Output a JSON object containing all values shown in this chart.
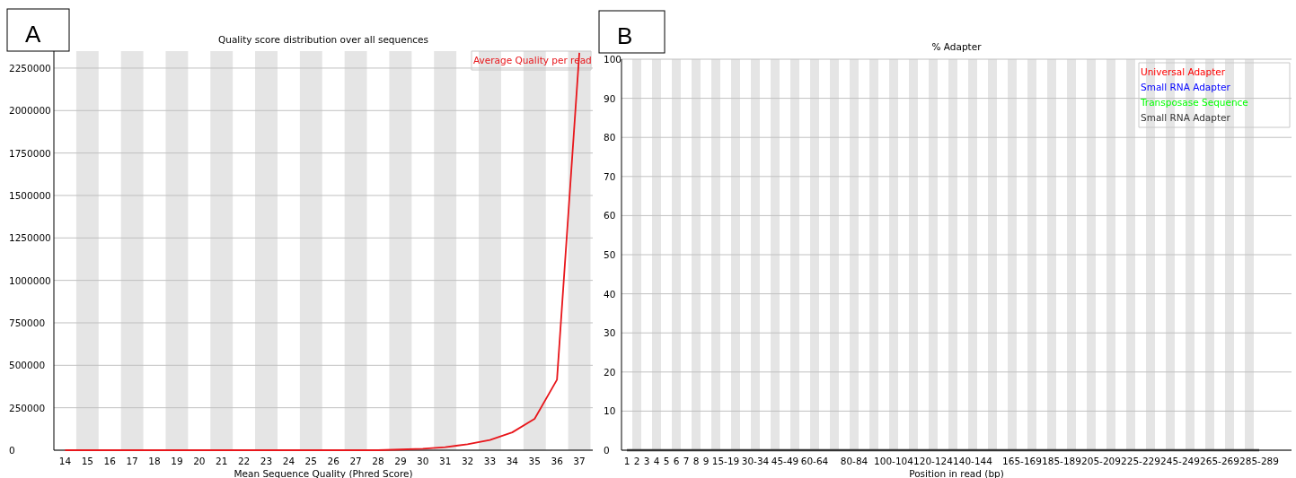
{
  "chart_data": [
    {
      "type": "line",
      "title": "Quality score distribution over all sequences",
      "xlabel": "Mean Sequence Quality (Phred Score)",
      "annotations": [
        "A"
      ],
      "x": [
        14,
        15,
        16,
        17,
        18,
        19,
        20,
        21,
        22,
        23,
        24,
        25,
        26,
        27,
        28,
        29,
        30,
        31,
        32,
        33,
        34,
        35,
        36,
        37
      ],
      "series": [
        {
          "name": "Average Quality per read",
          "color": "#e8161b",
          "values": [
            0,
            0,
            0,
            0,
            0,
            0,
            0,
            0,
            0,
            0,
            0,
            0,
            0,
            0,
            0,
            4000,
            9000,
            18000,
            35000,
            60000,
            105000,
            185000,
            415000,
            2340000
          ]
        }
      ],
      "xlim": [
        13.5,
        37.6
      ],
      "xticks": [
        14,
        15,
        16,
        17,
        18,
        19,
        20,
        21,
        22,
        23,
        24,
        25,
        26,
        27,
        28,
        29,
        30,
        31,
        32,
        33,
        34,
        35,
        36,
        37
      ],
      "ylim": [
        0,
        2350000
      ],
      "yticks": [
        0,
        250000,
        500000,
        750000,
        1000000,
        1250000,
        1500000,
        1750000,
        2000000,
        2250000
      ],
      "bands": [
        {
          "axis": "x",
          "from": 14.5,
          "to": 15.5,
          "color": "#e5e5e5"
        },
        {
          "axis": "x",
          "from": 16.5,
          "to": 17.5,
          "color": "#e5e5e5"
        },
        {
          "axis": "x",
          "from": 18.5,
          "to": 19.5,
          "color": "#e5e5e5"
        },
        {
          "axis": "x",
          "from": 20.5,
          "to": 21.5,
          "color": "#e5e5e5"
        },
        {
          "axis": "x",
          "from": 22.5,
          "to": 23.5,
          "color": "#e5e5e5"
        },
        {
          "axis": "x",
          "from": 24.5,
          "to": 25.5,
          "color": "#e5e5e5"
        },
        {
          "axis": "x",
          "from": 26.5,
          "to": 27.5,
          "color": "#e5e5e5"
        },
        {
          "axis": "x",
          "from": 28.5,
          "to": 29.5,
          "color": "#e5e5e5"
        },
        {
          "axis": "x",
          "from": 30.5,
          "to": 31.5,
          "color": "#e5e5e5"
        },
        {
          "axis": "x",
          "from": 32.5,
          "to": 33.5,
          "color": "#e5e5e5"
        },
        {
          "axis": "x",
          "from": 34.5,
          "to": 35.5,
          "color": "#e5e5e5"
        },
        {
          "axis": "x",
          "from": 36.5,
          "to": 37.5,
          "color": "#e5e5e5"
        }
      ],
      "grid": "y",
      "legend": "top right",
      "marker": "none",
      "line_style": "solid"
    },
    {
      "type": "line",
      "title": "% Adapter",
      "xlabel": "Position in read (bp)",
      "annotations": [
        "B"
      ],
      "categories": [
        "1",
        "2",
        "3",
        "4",
        "5",
        "6",
        "7",
        "8",
        "9",
        null,
        "15-19",
        null,
        null,
        "30-34",
        null,
        null,
        "45-49",
        null,
        null,
        "60-64",
        null,
        null,
        null,
        "80-84",
        null,
        null,
        null,
        "100-104",
        null,
        null,
        null,
        "120-124",
        null,
        null,
        null,
        "140-144",
        null,
        null,
        null,
        null,
        "165-169",
        null,
        null,
        null,
        "185-189",
        null,
        null,
        null,
        "205-209",
        null,
        null,
        null,
        "225-229",
        null,
        null,
        null,
        "245-249",
        null,
        null,
        null,
        "265-269",
        null,
        null,
        null,
        "285-289"
      ],
      "series": [
        {
          "name": "Universal Adapter",
          "color": "#ff0000",
          "values": [
            null,
            null,
            null,
            null,
            null,
            null,
            null,
            null,
            null,
            null,
            null,
            null,
            null,
            null,
            null,
            null,
            null,
            null,
            null,
            null,
            null,
            null,
            null,
            null,
            null,
            null,
            null,
            null,
            null,
            null,
            null,
            null,
            null,
            null,
            null,
            null,
            null,
            null,
            null,
            null,
            null,
            null,
            null,
            null,
            null,
            null,
            null,
            null,
            null,
            null,
            null,
            null,
            null,
            null,
            null,
            null,
            null,
            null,
            null,
            null,
            null,
            null,
            null,
            null,
            null
          ]
        },
        {
          "name": "Small RNA Adapter",
          "color": "#0000ff",
          "values": [
            null,
            null,
            null,
            null,
            null,
            null,
            null,
            null,
            null,
            null,
            null,
            null,
            null,
            null,
            null,
            null,
            null,
            null,
            null,
            null,
            null,
            null,
            null,
            null,
            null,
            null,
            null,
            null,
            null,
            null,
            null,
            null,
            null,
            null,
            null,
            null,
            null,
            null,
            null,
            null,
            null,
            null,
            null,
            null,
            null,
            null,
            null,
            null,
            null,
            null,
            null,
            null,
            null,
            null,
            null,
            null,
            null,
            null,
            null,
            null,
            null,
            null,
            null,
            null,
            null
          ]
        },
        {
          "name": "Transposase Sequence",
          "color": "#00ff00",
          "values": [
            null,
            null,
            null,
            null,
            null,
            null,
            null,
            null,
            null,
            null,
            null,
            null,
            null,
            null,
            null,
            null,
            null,
            null,
            null,
            null,
            null,
            null,
            null,
            null,
            null,
            null,
            null,
            null,
            null,
            null,
            null,
            null,
            null,
            null,
            null,
            null,
            null,
            null,
            null,
            null,
            null,
            null,
            null,
            null,
            null,
            null,
            null,
            null,
            null,
            null,
            null,
            null,
            null,
            null,
            null,
            null,
            null,
            null,
            null,
            null,
            null,
            null,
            null,
            null,
            null
          ]
        },
        {
          "name": "Small RNA Adapter",
          "color": "#333333",
          "values": [
            0,
            0,
            0,
            0,
            0,
            0,
            0,
            0,
            0,
            0,
            0,
            0,
            0,
            0,
            0,
            0,
            0,
            0,
            0,
            0,
            0,
            0,
            0,
            0,
            0,
            0,
            0,
            0,
            0,
            0,
            0,
            0,
            0,
            0,
            0,
            0,
            0,
            0,
            0,
            0,
            0,
            0,
            0,
            0,
            0,
            0,
            0,
            0,
            0,
            0,
            0,
            0,
            0,
            0,
            0,
            0,
            0,
            0,
            0,
            0,
            0,
            0,
            0,
            0,
            0
          ]
        }
      ],
      "ylim": [
        0,
        100
      ],
      "yticks": [
        0,
        10,
        20,
        30,
        40,
        50,
        60,
        70,
        80,
        90,
        100
      ],
      "grid": "y",
      "legend": "top right",
      "marker": "none",
      "line_style": "solid"
    }
  ]
}
